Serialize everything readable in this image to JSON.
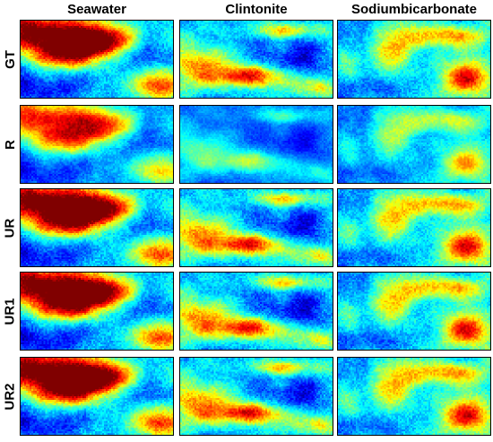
{
  "figure": {
    "column_titles": [
      "Seawater",
      "Clintonite",
      "Sodiumbicarbonate"
    ],
    "row_labels": [
      "GT",
      "R",
      "UR",
      "UR1",
      "UR2"
    ],
    "colormap": "jet",
    "colors": {
      "low": "#00008f",
      "mid_low": "#0050ff",
      "mid": "#20e0e0",
      "mid_high": "#ffe000",
      "high": "#d00000"
    }
  }
}
